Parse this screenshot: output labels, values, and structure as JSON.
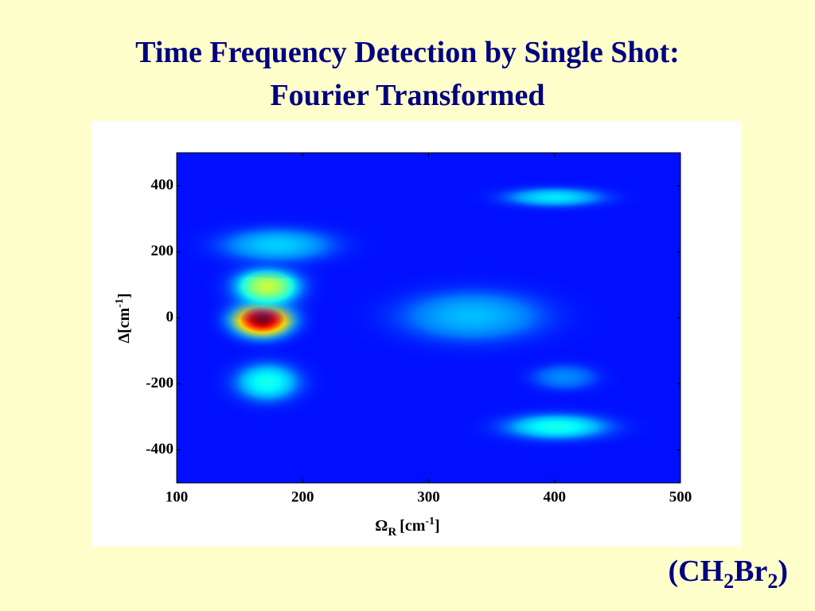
{
  "chart_data": {
    "type": "heatmap",
    "title": [
      "Time Frequency Detection by Single Shot:",
      "Fourier Transformed"
    ],
    "xlabel": [
      "Ω",
      "R",
      "[cm",
      "-1",
      "]"
    ],
    "ylabel": [
      "Δ[cm",
      "-1",
      "]"
    ],
    "annotation": [
      "(CH",
      "2",
      "Br",
      "2",
      ")"
    ],
    "xlim": [
      100,
      500
    ],
    "ylim": [
      -500,
      500
    ],
    "xticks": [
      100,
      200,
      300,
      400,
      500
    ],
    "yticks": [
      -400,
      -200,
      0,
      200,
      400
    ],
    "colormap": "jet",
    "peaks": {
      "x": [
        168,
        172,
        172,
        180,
        335,
        400,
        402,
        408
      ],
      "y": [
        -5,
        95,
        -195,
        220,
        5,
        365,
        -330,
        -180
      ],
      "amplitude": [
        1.0,
        0.5,
        0.3,
        0.22,
        0.2,
        0.25,
        0.3,
        0.14
      ],
      "x_width": [
        18,
        20,
        20,
        35,
        45,
        30,
        32,
        20
      ],
      "y_width": [
        40,
        45,
        45,
        40,
        60,
        22,
        30,
        30
      ]
    }
  }
}
